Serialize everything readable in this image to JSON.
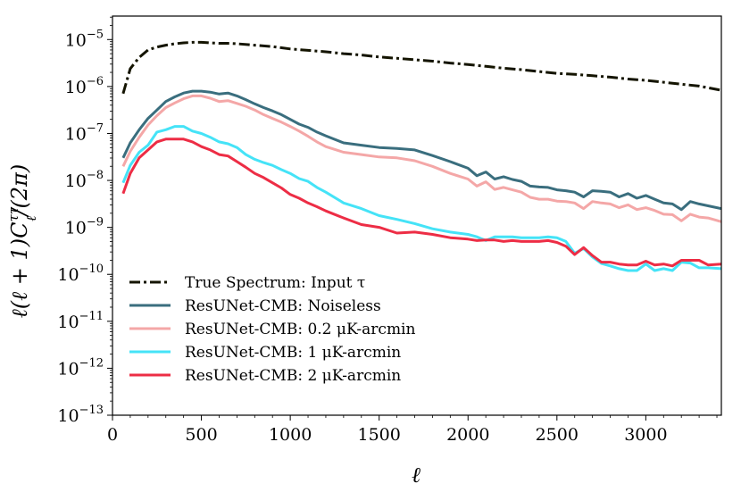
{
  "chart_data": {
    "type": "line",
    "xlabel": "ℓ",
    "ylabel": "ℓ(ℓ + 1)C",
    "ylabel_sup": "ττ",
    "ylabel_sub": "ℓ",
    "ylabel_tail": "/(2π)",
    "xlim": [
      0,
      3425
    ],
    "ylim_log10": [
      -13,
      -4.5
    ],
    "yscale": "log",
    "x_ticks": [
      0,
      500,
      1000,
      1500,
      2000,
      2500,
      3000
    ],
    "x_tick_labels": [
      "0",
      "500",
      "1000",
      "1500",
      "2000",
      "2500",
      "3000"
    ],
    "y_tick_exponents": [
      -13,
      -12,
      -11,
      -10,
      -9,
      -8,
      -7,
      -6,
      -5
    ],
    "y_tick_labels": [
      "10",
      "10",
      "10",
      "10",
      "10",
      "10",
      "10",
      "10",
      "10"
    ],
    "y_tick_label_exponents": [
      "−13",
      "−12",
      "−11",
      "−10",
      "−9",
      "−8",
      "−7",
      "−6",
      "−5"
    ],
    "legend_position": "lower-left",
    "series": [
      {
        "name": "True Spectrum: Input τ",
        "color": "#141400",
        "dash": "dashdot",
        "x": [
          60,
          100,
          150,
          200,
          250,
          300,
          350,
          400,
          450,
          500,
          550,
          600,
          650,
          700,
          800,
          900,
          1000,
          1100,
          1200,
          1300,
          1400,
          1500,
          1600,
          1700,
          1800,
          1900,
          2000,
          2100,
          2200,
          2300,
          2400,
          2500,
          2600,
          2700,
          2800,
          2900,
          3000,
          3100,
          3200,
          3300,
          3425
        ],
        "log10_y": [
          -6.15,
          -5.62,
          -5.38,
          -5.22,
          -5.16,
          -5.12,
          -5.09,
          -5.07,
          -5.06,
          -5.06,
          -5.07,
          -5.08,
          -5.08,
          -5.09,
          -5.12,
          -5.15,
          -5.2,
          -5.23,
          -5.26,
          -5.3,
          -5.33,
          -5.37,
          -5.4,
          -5.43,
          -5.46,
          -5.5,
          -5.53,
          -5.57,
          -5.61,
          -5.64,
          -5.68,
          -5.72,
          -5.74,
          -5.77,
          -5.8,
          -5.84,
          -5.87,
          -5.91,
          -5.95,
          -5.99,
          -6.08
        ]
      },
      {
        "name": "ResUNet-CMB: Noiseless",
        "color": "#3a6e7e",
        "dash": "solid",
        "x": [
          60,
          100,
          150,
          200,
          250,
          300,
          350,
          400,
          450,
          500,
          550,
          600,
          650,
          700,
          750,
          800,
          850,
          900,
          950,
          1000,
          1050,
          1100,
          1150,
          1200,
          1300,
          1400,
          1500,
          1600,
          1700,
          1800,
          1900,
          2000,
          2050,
          2100,
          2150,
          2200,
          2250,
          2300,
          2350,
          2400,
          2450,
          2500,
          2550,
          2600,
          2650,
          2700,
          2750,
          2800,
          2850,
          2900,
          2950,
          3000,
          3050,
          3100,
          3150,
          3200,
          3250,
          3300,
          3350,
          3425
        ],
        "log10_y": [
          -7.52,
          -7.2,
          -6.92,
          -6.68,
          -6.5,
          -6.32,
          -6.22,
          -6.14,
          -6.1,
          -6.1,
          -6.12,
          -6.16,
          -6.14,
          -6.2,
          -6.28,
          -6.37,
          -6.45,
          -6.52,
          -6.6,
          -6.7,
          -6.8,
          -6.87,
          -6.97,
          -7.05,
          -7.2,
          -7.25,
          -7.3,
          -7.32,
          -7.35,
          -7.47,
          -7.6,
          -7.74,
          -7.9,
          -7.82,
          -7.97,
          -7.92,
          -7.98,
          -8.02,
          -8.12,
          -8.14,
          -8.15,
          -8.2,
          -8.22,
          -8.25,
          -8.35,
          -8.22,
          -8.23,
          -8.25,
          -8.35,
          -8.28,
          -8.38,
          -8.32,
          -8.4,
          -8.48,
          -8.5,
          -8.62,
          -8.45,
          -8.5,
          -8.54,
          -8.6
        ]
      },
      {
        "name": "ResUNet-CMB: 0.2 μK-arcmin",
        "color": "#f4a7a7",
        "dash": "solid",
        "x": [
          60,
          100,
          150,
          200,
          250,
          300,
          350,
          400,
          450,
          500,
          550,
          600,
          650,
          700,
          750,
          800,
          850,
          900,
          950,
          1000,
          1050,
          1100,
          1150,
          1200,
          1300,
          1400,
          1500,
          1600,
          1700,
          1800,
          1900,
          2000,
          2050,
          2100,
          2150,
          2200,
          2250,
          2300,
          2350,
          2400,
          2450,
          2500,
          2550,
          2600,
          2650,
          2700,
          2750,
          2800,
          2850,
          2900,
          2950,
          3000,
          3050,
          3100,
          3150,
          3200,
          3250,
          3300,
          3350,
          3425
        ],
        "log10_y": [
          -7.7,
          -7.38,
          -7.08,
          -6.82,
          -6.62,
          -6.45,
          -6.35,
          -6.26,
          -6.2,
          -6.2,
          -6.25,
          -6.32,
          -6.3,
          -6.36,
          -6.42,
          -6.5,
          -6.6,
          -6.68,
          -6.76,
          -6.85,
          -6.95,
          -7.06,
          -7.18,
          -7.28,
          -7.4,
          -7.45,
          -7.5,
          -7.52,
          -7.58,
          -7.7,
          -7.85,
          -7.97,
          -8.12,
          -8.03,
          -8.19,
          -8.15,
          -8.2,
          -8.25,
          -8.36,
          -8.4,
          -8.4,
          -8.44,
          -8.45,
          -8.48,
          -8.6,
          -8.45,
          -8.48,
          -8.5,
          -8.58,
          -8.52,
          -8.62,
          -8.58,
          -8.64,
          -8.72,
          -8.73,
          -8.86,
          -8.72,
          -8.78,
          -8.8,
          -8.88
        ]
      },
      {
        "name": "ResUNet-CMB: 1 μK-arcmin",
        "color": "#45e3f7",
        "dash": "solid",
        "x": [
          60,
          100,
          150,
          200,
          250,
          300,
          350,
          400,
          450,
          500,
          550,
          600,
          650,
          700,
          750,
          800,
          850,
          900,
          950,
          1000,
          1050,
          1100,
          1150,
          1200,
          1300,
          1400,
          1500,
          1600,
          1700,
          1800,
          1900,
          2000,
          2050,
          2100,
          2150,
          2200,
          2250,
          2300,
          2350,
          2400,
          2450,
          2500,
          2550,
          2600,
          2650,
          2700,
          2750,
          2800,
          2850,
          2900,
          2950,
          3000,
          3050,
          3100,
          3150,
          3200,
          3250,
          3300,
          3350,
          3425
        ],
        "log10_y": [
          -8.05,
          -7.68,
          -7.4,
          -7.25,
          -6.97,
          -6.92,
          -6.85,
          -6.85,
          -6.95,
          -7.0,
          -7.08,
          -7.18,
          -7.22,
          -7.3,
          -7.45,
          -7.55,
          -7.62,
          -7.68,
          -7.77,
          -7.85,
          -7.96,
          -8.02,
          -8.15,
          -8.25,
          -8.48,
          -8.6,
          -8.75,
          -8.83,
          -8.92,
          -9.03,
          -9.1,
          -9.15,
          -9.2,
          -9.28,
          -9.2,
          -9.2,
          -9.2,
          -9.22,
          -9.22,
          -9.22,
          -9.2,
          -9.22,
          -9.3,
          -9.55,
          -9.45,
          -9.63,
          -9.77,
          -9.82,
          -9.88,
          -9.92,
          -9.92,
          -9.78,
          -9.92,
          -9.88,
          -9.92,
          -9.74,
          -9.76,
          -9.86,
          -9.86,
          -9.88
        ]
      },
      {
        "name": "ResUNet-CMB: 2 μK-arcmin",
        "color": "#ed2d45",
        "dash": "solid",
        "x": [
          60,
          100,
          150,
          200,
          250,
          300,
          350,
          400,
          450,
          500,
          550,
          600,
          650,
          700,
          750,
          800,
          850,
          900,
          950,
          1000,
          1050,
          1100,
          1150,
          1200,
          1300,
          1400,
          1500,
          1600,
          1700,
          1800,
          1900,
          2000,
          2050,
          2100,
          2150,
          2200,
          2250,
          2300,
          2350,
          2400,
          2450,
          2500,
          2550,
          2600,
          2650,
          2700,
          2750,
          2800,
          2850,
          2900,
          2950,
          3000,
          3050,
          3100,
          3150,
          3200,
          3250,
          3300,
          3350,
          3425
        ],
        "log10_y": [
          -8.28,
          -7.85,
          -7.52,
          -7.35,
          -7.18,
          -7.12,
          -7.12,
          -7.12,
          -7.18,
          -7.28,
          -7.35,
          -7.45,
          -7.48,
          -7.6,
          -7.72,
          -7.85,
          -7.94,
          -8.05,
          -8.16,
          -8.3,
          -8.38,
          -8.48,
          -8.56,
          -8.65,
          -8.8,
          -8.94,
          -9.0,
          -9.12,
          -9.1,
          -9.15,
          -9.22,
          -9.25,
          -9.28,
          -9.27,
          -9.27,
          -9.3,
          -9.28,
          -9.3,
          -9.3,
          -9.3,
          -9.28,
          -9.32,
          -9.4,
          -9.58,
          -9.43,
          -9.6,
          -9.74,
          -9.74,
          -9.78,
          -9.8,
          -9.8,
          -9.72,
          -9.8,
          -9.78,
          -9.82,
          -9.7,
          -9.7,
          -9.7,
          -9.8,
          -9.78
        ]
      }
    ]
  }
}
